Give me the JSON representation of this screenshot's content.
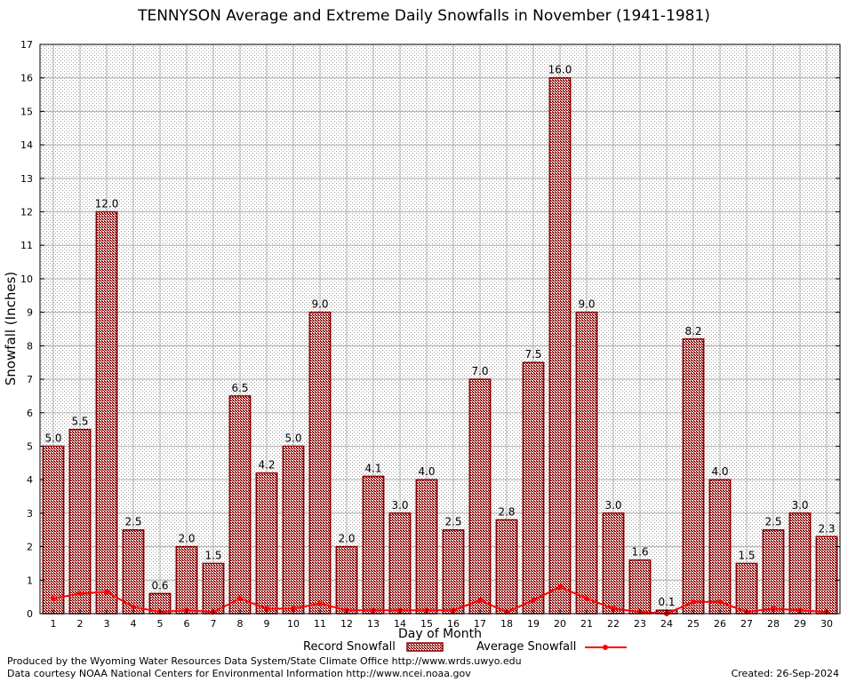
{
  "chart_data": {
    "type": "bar",
    "title": "TENNYSON Average and Extreme Daily Snowfalls in November (1941-1981)",
    "xlabel": "Day of Month",
    "ylabel": "Snowfall (Inches)",
    "ylim": [
      0,
      17
    ],
    "yticks": [
      0,
      1,
      2,
      3,
      4,
      5,
      6,
      7,
      8,
      9,
      10,
      11,
      12,
      13,
      14,
      15,
      16,
      17
    ],
    "grid": true,
    "legend_position": "bottom",
    "categories": [
      "1",
      "2",
      "3",
      "4",
      "5",
      "6",
      "7",
      "8",
      "9",
      "10",
      "11",
      "12",
      "13",
      "14",
      "15",
      "16",
      "17",
      "18",
      "19",
      "20",
      "21",
      "22",
      "23",
      "24",
      "25",
      "26",
      "27",
      "28",
      "29",
      "30"
    ],
    "series": [
      {
        "name": "Record Snowfall",
        "type": "bar",
        "color": "#8b0000",
        "values": [
          5.0,
          5.5,
          12.0,
          2.5,
          0.6,
          2.0,
          1.5,
          6.5,
          4.2,
          5.0,
          9.0,
          2.0,
          4.1,
          3.0,
          4.0,
          2.5,
          7.0,
          2.8,
          7.5,
          16.0,
          9.0,
          3.0,
          1.6,
          0.1,
          8.2,
          4.0,
          1.5,
          2.5,
          3.0,
          2.3
        ],
        "labels": [
          "5.0",
          "5.5",
          "12.0",
          "2.5",
          "0.6",
          "2.0",
          "1.5",
          "6.5",
          "4.2",
          "5.0",
          "9.0",
          "2.0",
          "4.1",
          "3.0",
          "4.0",
          "2.5",
          "7.0",
          "2.8",
          "7.5",
          "16.0",
          "9.0",
          "3.0",
          "1.6",
          "0.1",
          "8.2",
          "4.0",
          "1.5",
          "2.5",
          "3.0",
          "2.3"
        ]
      },
      {
        "name": "Average Snowfall",
        "type": "line",
        "color": "#ff0000",
        "values": [
          0.45,
          0.6,
          0.65,
          0.2,
          0.05,
          0.1,
          0.05,
          0.45,
          0.15,
          0.15,
          0.3,
          0.1,
          0.1,
          0.1,
          0.1,
          0.1,
          0.4,
          0.05,
          0.4,
          0.8,
          0.45,
          0.15,
          0.05,
          0.0,
          0.35,
          0.35,
          0.05,
          0.15,
          0.1,
          0.05
        ]
      }
    ]
  },
  "legend": {
    "record_label": "Record Snowfall",
    "average_label": "Average Snowfall"
  },
  "footer": {
    "line1": "Produced by the Wyoming Water Resources Data System/State Climate Office http://www.wrds.uwyo.edu",
    "line2": "Data courtesy NOAA National Centers for Environmental Information http://www.ncei.noaa.gov",
    "created": "Created:  26-Sep-2024"
  }
}
